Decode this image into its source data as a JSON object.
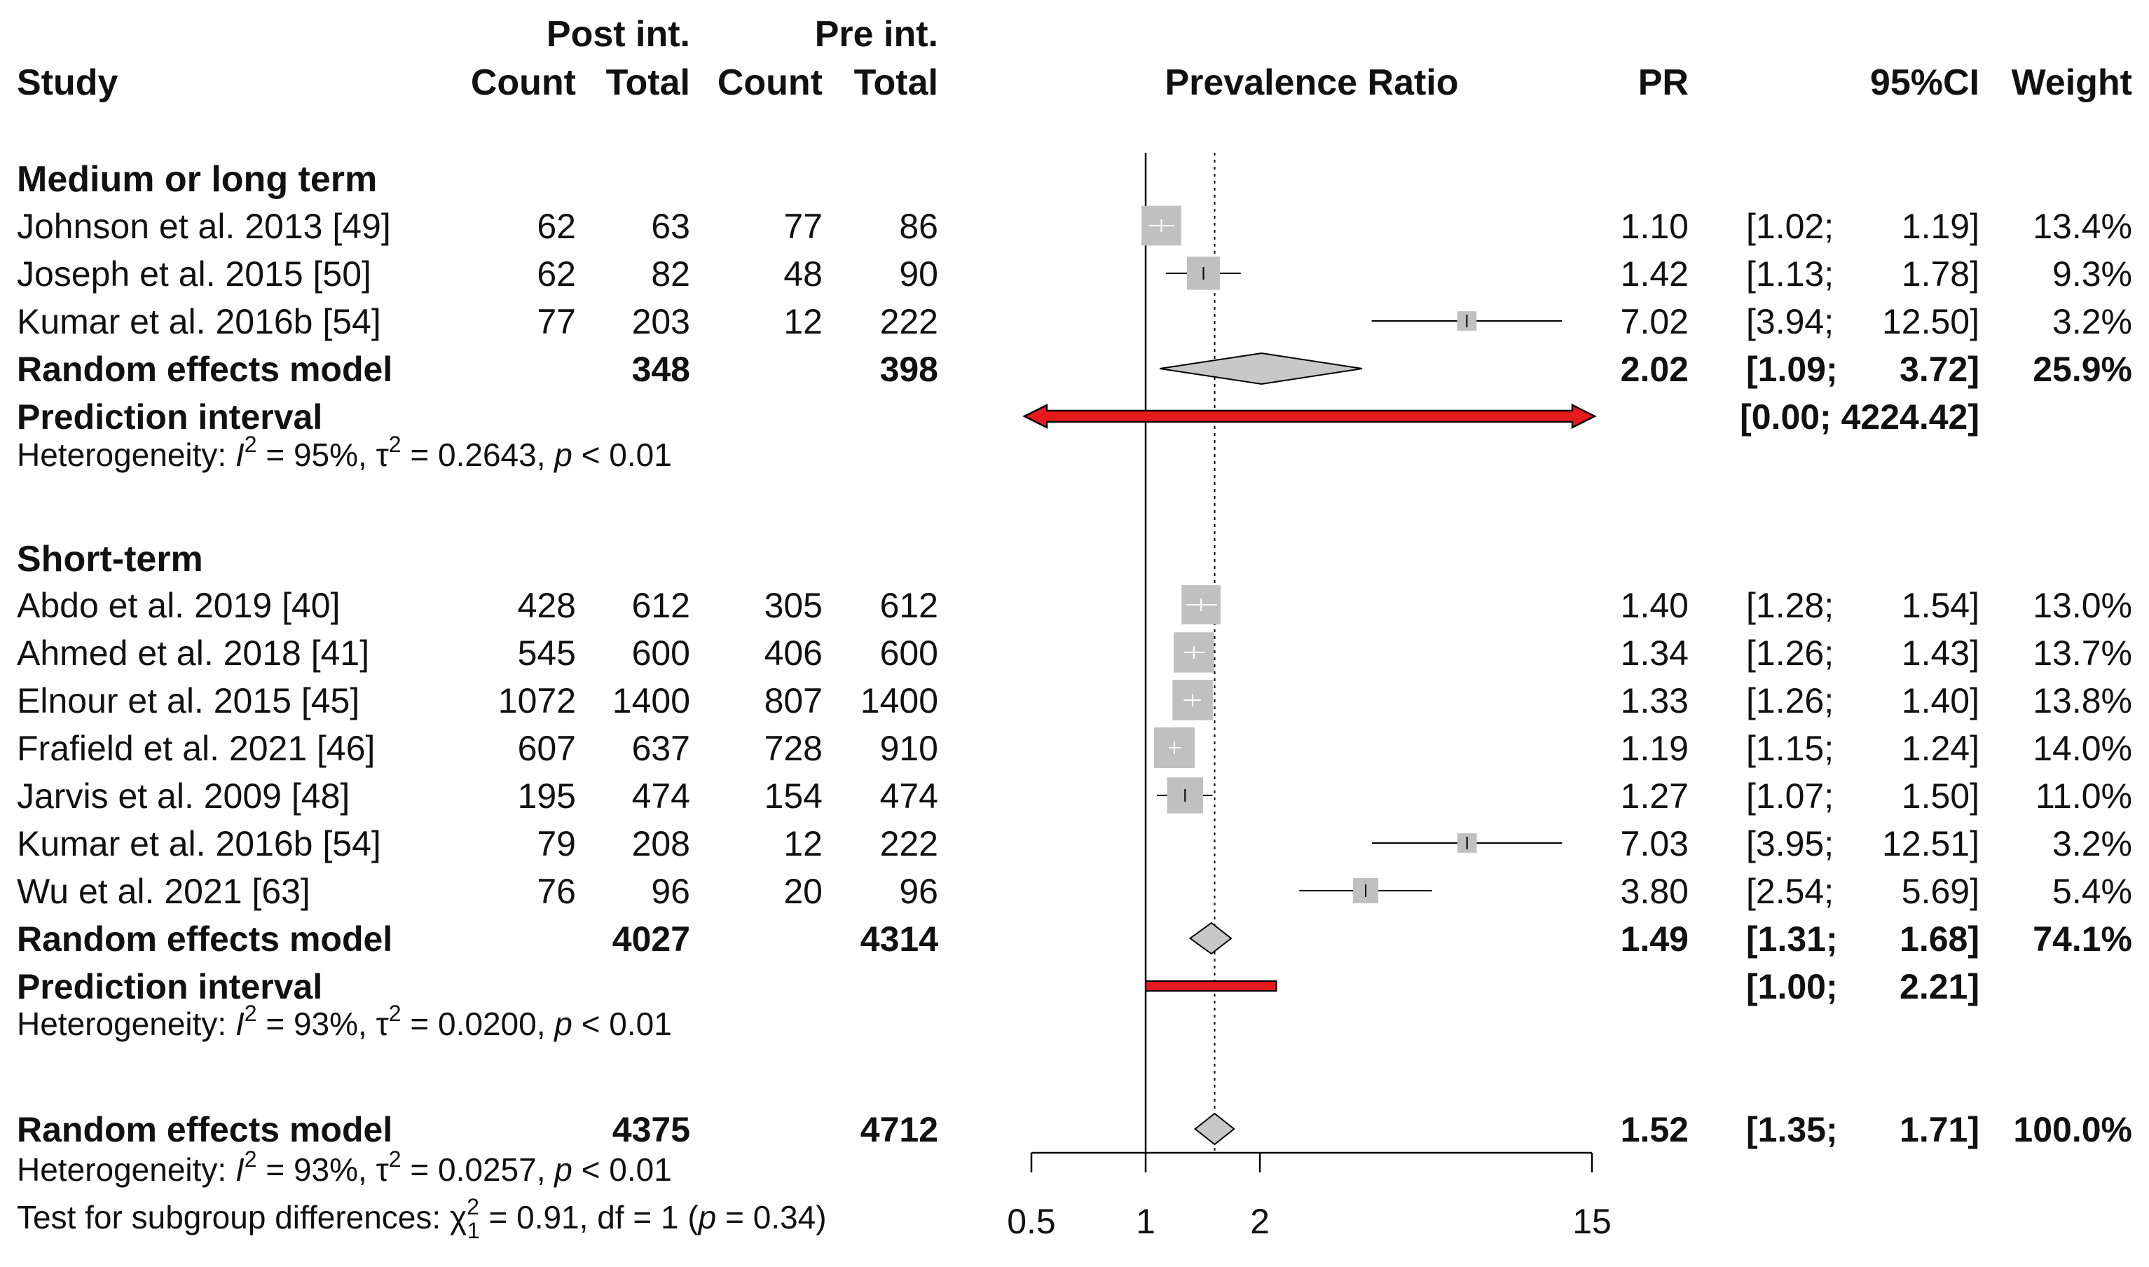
{
  "headers": {
    "study": "Study",
    "post_group": "Post int.",
    "pre_group": "Pre int.",
    "post_count": "Count",
    "post_total": "Total",
    "pre_count": "Count",
    "pre_total": "Total",
    "plot": "Prevalence Ratio",
    "pr": "PR",
    "ci": "95%CI",
    "weight": "Weight"
  },
  "chart_data": {
    "type": "forest",
    "title": "Prevalence Ratio",
    "scale": "log",
    "xlim": [
      0.5,
      15
    ],
    "ticks": [
      {
        "value": 0.5,
        "label": "0.5"
      },
      {
        "value": 1,
        "label": "1"
      },
      {
        "value": 2,
        "label": "2"
      },
      {
        "value": 15,
        "label": "15"
      }
    ],
    "reference_line": 1,
    "overall_line": 1.52,
    "colors": {
      "square": "#c0c0c0",
      "diamond": "#c8c8c8",
      "prediction": "#e41a1c",
      "line": "#000000"
    },
    "subgroups": [
      {
        "title": "Medium or long term",
        "studies": [
          {
            "study": "Johnson et al. 2013 [49]",
            "post_count": "62",
            "post_total": "63",
            "pre_count": "77",
            "pre_total": "86",
            "pr": 1.1,
            "lo": 1.02,
            "hi": 1.19,
            "pr_text": "1.10",
            "lo_text": "[1.02;",
            "hi_text": "1.19]",
            "weight": "13.4%",
            "w": 13.4
          },
          {
            "study": "Joseph et al. 2015 [50]",
            "post_count": "62",
            "post_total": "82",
            "pre_count": "48",
            "pre_total": "90",
            "pr": 1.42,
            "lo": 1.13,
            "hi": 1.78,
            "pr_text": "1.42",
            "lo_text": "[1.13;",
            "hi_text": "1.78]",
            "weight": "9.3%",
            "w": 9.3
          },
          {
            "study": "Kumar et al. 2016b [54]",
            "post_count": "77",
            "post_total": "203",
            "pre_count": "12",
            "pre_total": "222",
            "pr": 7.02,
            "lo": 3.94,
            "hi": 12.5,
            "pr_text": "7.02",
            "lo_text": "[3.94;",
            "hi_text": "12.50]",
            "weight": "3.2%",
            "w": 3.2
          }
        ],
        "random": {
          "label": "Random effects model",
          "post_total": "348",
          "pre_total": "398",
          "pr": 2.02,
          "lo": 1.09,
          "hi": 3.72,
          "pr_text": "2.02",
          "lo_text": "[1.09;",
          "hi_text": "3.72]",
          "weight": "25.9%"
        },
        "prediction": {
          "label": "Prediction interval",
          "lo": 0.0,
          "hi": 4224.42,
          "ci_text": "[0.00; 4224.42]",
          "arrows": true
        },
        "het_pre": "Heterogeneity: ",
        "het_i": "I",
        "het_sup": "2",
        "het_mid": " = 95%, τ",
        "het_sup2": "2",
        "het_rest": " = 0.2643, ",
        "het_p": "p",
        "het_end": " < 0.01"
      },
      {
        "title": "Short-term",
        "studies": [
          {
            "study": "Abdo et al. 2019 [40]",
            "post_count": "428",
            "post_total": "612",
            "pre_count": "305",
            "pre_total": "612",
            "pr": 1.4,
            "lo": 1.28,
            "hi": 1.54,
            "pr_text": "1.40",
            "lo_text": "[1.28;",
            "hi_text": "1.54]",
            "weight": "13.0%",
            "w": 13.0
          },
          {
            "study": "Ahmed et al. 2018 [41]",
            "post_count": "545",
            "post_total": "600",
            "pre_count": "406",
            "pre_total": "600",
            "pr": 1.34,
            "lo": 1.26,
            "hi": 1.43,
            "pr_text": "1.34",
            "lo_text": "[1.26;",
            "hi_text": "1.43]",
            "weight": "13.7%",
            "w": 13.7
          },
          {
            "study": "Elnour et al. 2015 [45]",
            "post_count": "1072",
            "post_total": "1400",
            "pre_count": "807",
            "pre_total": "1400",
            "pr": 1.33,
            "lo": 1.26,
            "hi": 1.4,
            "pr_text": "1.33",
            "lo_text": "[1.26;",
            "hi_text": "1.40]",
            "weight": "13.8%",
            "w": 13.8
          },
          {
            "study": "Frafield et al. 2021 [46]",
            "post_count": "607",
            "post_total": "637",
            "pre_count": "728",
            "pre_total": "910",
            "pr": 1.19,
            "lo": 1.15,
            "hi": 1.24,
            "pr_text": "1.19",
            "lo_text": "[1.15;",
            "hi_text": "1.24]",
            "weight": "14.0%",
            "w": 14.0
          },
          {
            "study": "Jarvis et al. 2009 [48]",
            "post_count": "195",
            "post_total": "474",
            "pre_count": "154",
            "pre_total": "474",
            "pr": 1.27,
            "lo": 1.07,
            "hi": 1.5,
            "pr_text": "1.27",
            "lo_text": "[1.07;",
            "hi_text": "1.50]",
            "weight": "11.0%",
            "w": 11.0
          },
          {
            "study": "Kumar et al. 2016b [54]",
            "post_count": "79",
            "post_total": "208",
            "pre_count": "12",
            "pre_total": "222",
            "pr": 7.03,
            "lo": 3.95,
            "hi": 12.51,
            "pr_text": "7.03",
            "lo_text": "[3.95;",
            "hi_text": "12.51]",
            "weight": "3.2%",
            "w": 3.2
          },
          {
            "study": "Wu et al. 2021 [63]",
            "post_count": "76",
            "post_total": "96",
            "pre_count": "20",
            "pre_total": "96",
            "pr": 3.8,
            "lo": 2.54,
            "hi": 5.69,
            "pr_text": "3.80",
            "lo_text": "[2.54;",
            "hi_text": "5.69]",
            "weight": "5.4%",
            "w": 5.4
          }
        ],
        "random": {
          "label": "Random effects model",
          "post_total": "4027",
          "pre_total": "4314",
          "pr": 1.49,
          "lo": 1.31,
          "hi": 1.68,
          "pr_text": "1.49",
          "lo_text": "[1.31;",
          "hi_text": "1.68]",
          "weight": "74.1%"
        },
        "prediction": {
          "label": "Prediction interval",
          "lo": 1.0,
          "hi": 2.21,
          "lo_text": "[1.00;",
          "hi_text": "2.21]",
          "arrows": false
        },
        "het_pre": "Heterogeneity: ",
        "het_i": "I",
        "het_sup": "2",
        "het_mid": " = 93%, τ",
        "het_sup2": "2",
        "het_rest": " = 0.0200, ",
        "het_p": "p",
        "het_end": " < 0.01"
      }
    ],
    "overall": {
      "label": "Random effects model",
      "post_total": "4375",
      "pre_total": "4712",
      "pr": 1.52,
      "lo": 1.35,
      "hi": 1.71,
      "pr_text": "1.52",
      "lo_text": "[1.35;",
      "hi_text": "1.71]",
      "weight": "100.0%",
      "het_pre": "Heterogeneity: ",
      "het_i": "I",
      "het_sup": "2",
      "het_mid": " = 93%, τ",
      "het_sup2": "2",
      "het_rest": " = 0.0257, ",
      "het_p": "p",
      "het_end": " < 0.01",
      "sub_pre": "Test for subgroup differences: χ",
      "sub_sup": "2",
      "sub_sub": "1",
      "sub_mid": " = 0.91, df = 1 (",
      "sub_p": "p",
      "sub_end": " = 0.34)"
    }
  }
}
